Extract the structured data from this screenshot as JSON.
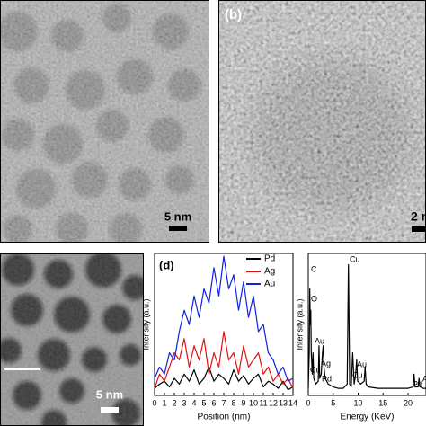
{
  "panels": {
    "a": {
      "scale_bar": "5 nm"
    },
    "b": {
      "label": "(b)",
      "scale_bar": "2 n"
    },
    "c": {
      "scale_bar": "5 nm"
    }
  },
  "chart_data": [
    {
      "type": "line",
      "label": "(d)",
      "xlabel": "Position (nm)",
      "ylabel": "Intensity (a.u.)",
      "x": [
        0,
        0.5,
        1,
        1.5,
        2,
        2.5,
        3,
        3.5,
        4,
        4.5,
        5,
        5.5,
        6,
        6.5,
        7,
        7.5,
        8,
        8.5,
        9,
        9.5,
        10,
        10.5,
        11,
        11.5,
        12,
        12.5,
        13,
        13.5,
        14
      ],
      "xlim": [
        0,
        14
      ],
      "xticks": [
        0,
        1,
        2,
        3,
        4,
        5,
        6,
        7,
        8,
        9,
        10,
        11,
        12,
        13,
        14
      ],
      "ylim": [
        0,
        1
      ],
      "legend": "upper right",
      "series": [
        {
          "name": "Pd",
          "color": "#000000",
          "values": [
            0.05,
            0.08,
            0.1,
            0.06,
            0.12,
            0.08,
            0.15,
            0.1,
            0.18,
            0.08,
            0.12,
            0.2,
            0.1,
            0.15,
            0.12,
            0.08,
            0.18,
            0.1,
            0.14,
            0.08,
            0.12,
            0.15,
            0.06,
            0.1,
            0.08,
            0.05,
            0.1,
            0.04,
            0.06
          ]
        },
        {
          "name": "Ag",
          "color": "#e01010",
          "values": [
            0.05,
            0.15,
            0.1,
            0.2,
            0.3,
            0.25,
            0.4,
            0.2,
            0.35,
            0.25,
            0.4,
            0.15,
            0.3,
            0.2,
            0.45,
            0.25,
            0.3,
            0.15,
            0.35,
            0.2,
            0.25,
            0.3,
            0.15,
            0.2,
            0.1,
            0.15,
            0.08,
            0.12,
            0.05
          ]
        },
        {
          "name": "Au",
          "color": "#1020e0",
          "values": [
            0.12,
            0.2,
            0.15,
            0.3,
            0.25,
            0.45,
            0.6,
            0.5,
            0.7,
            0.55,
            0.75,
            0.65,
            0.9,
            0.7,
            0.98,
            0.75,
            0.85,
            0.6,
            0.8,
            0.55,
            0.7,
            0.45,
            0.5,
            0.3,
            0.25,
            0.15,
            0.2,
            0.1,
            0.12
          ]
        }
      ]
    },
    {
      "type": "line",
      "xlabel": "Energy (KeV)",
      "ylabel": "Intensity (a.u.)",
      "x": [
        0,
        0.2,
        0.3,
        0.4,
        0.5,
        0.6,
        0.8,
        0.95,
        1.1,
        1.5,
        2.0,
        2.15,
        2.3,
        2.6,
        2.85,
        3.0,
        3.15,
        3.4,
        4,
        5,
        6,
        7,
        7.8,
        8.05,
        8.3,
        8.6,
        8.9,
        9.2,
        9.5,
        9.7,
        9.9,
        10.5,
        11.2,
        11.4,
        11.6,
        12,
        14,
        16,
        18,
        20,
        21,
        21.2,
        21.4,
        22,
        22.2,
        22.4,
        23,
        23.6
      ],
      "xlim": [
        0,
        23.6
      ],
      "xticks": [
        0,
        5,
        10,
        15,
        20
      ],
      "ylim": [
        0,
        1
      ],
      "series": [
        {
          "color": "#000000",
          "values": [
            0.05,
            0.3,
            0.75,
            0.5,
            0.6,
            0.3,
            0.15,
            0.3,
            0.12,
            0.08,
            0.1,
            0.35,
            0.12,
            0.15,
            0.3,
            0.35,
            0.2,
            0.12,
            0.08,
            0.06,
            0.05,
            0.05,
            0.08,
            0.92,
            0.08,
            0.06,
            0.3,
            0.08,
            0.15,
            0.25,
            0.1,
            0.08,
            0.1,
            0.2,
            0.08,
            0.06,
            0.05,
            0.05,
            0.05,
            0.05,
            0.06,
            0.15,
            0.06,
            0.06,
            0.12,
            0.06,
            0.05,
            0.05
          ]
        }
      ],
      "annotations": [
        "Cu",
        "C",
        "O",
        "Au",
        "Cu",
        "Ag",
        "Pd",
        "Au",
        "Cu",
        "Pd",
        "A"
      ]
    }
  ]
}
